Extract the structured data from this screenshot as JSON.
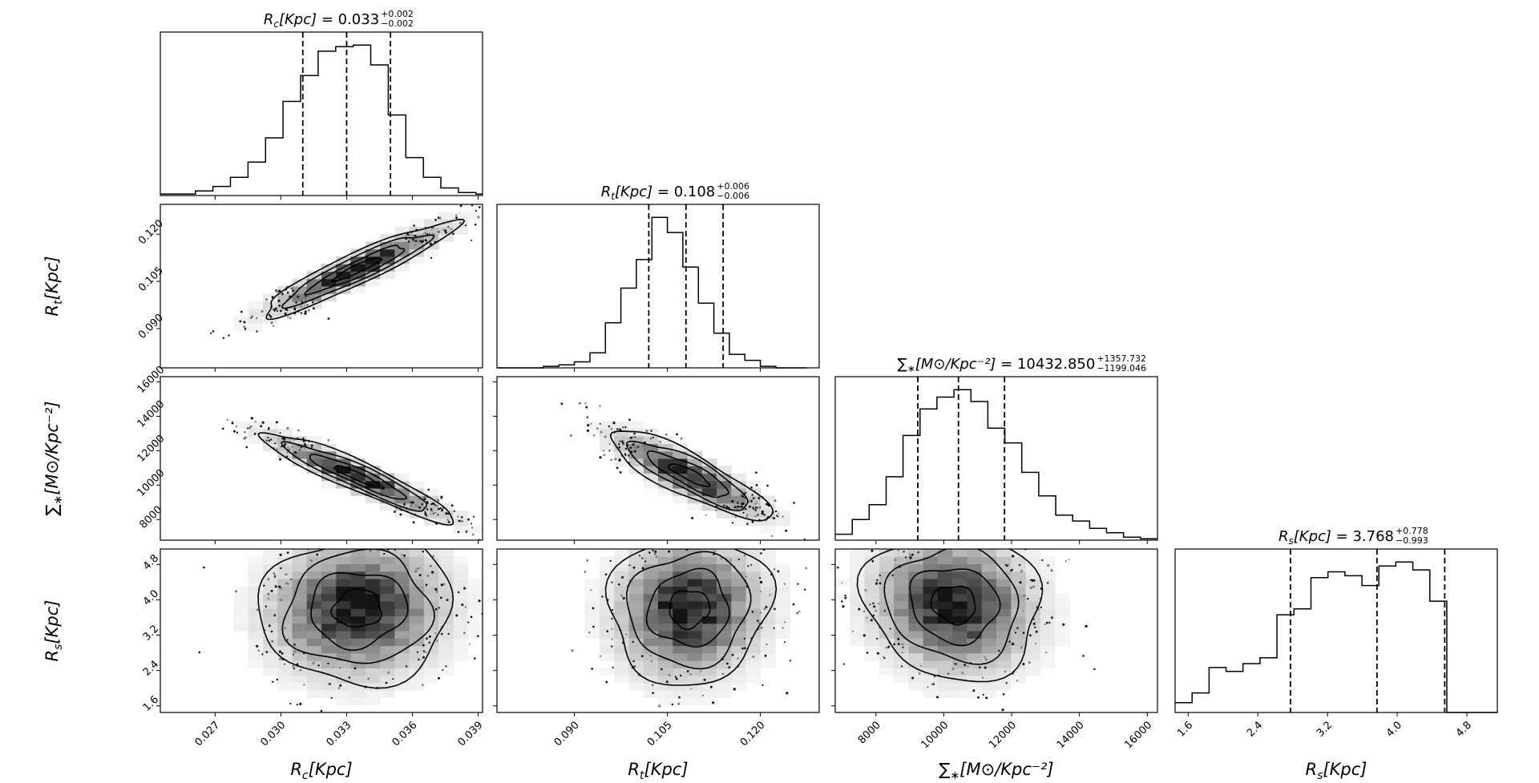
{
  "figure": {
    "type": "corner_plot",
    "background": "#ffffff",
    "line_color": "#000000"
  },
  "parameters": [
    {
      "key": "rc",
      "label_main": "R",
      "label_sub": "c",
      "label_rest": "[Kpc]",
      "title_value": "0.033",
      "err_plus": "+0.002",
      "err_minus": "−0.002",
      "median": 0.033,
      "q16": 0.031,
      "q84": 0.035,
      "range": [
        0.0245,
        0.0392
      ],
      "ticks": [
        0.027,
        0.03,
        0.033,
        0.036,
        0.039
      ],
      "tick_labels": [
        "0.027",
        "0.030",
        "0.033",
        "0.036",
        "0.039"
      ]
    },
    {
      "key": "rt",
      "label_main": "R",
      "label_sub": "t",
      "label_rest": "[Kpc]",
      "title_value": "0.108",
      "err_plus": "+0.006",
      "err_minus": "−0.006",
      "median": 0.108,
      "q16": 0.102,
      "q84": 0.114,
      "range": [
        0.0775,
        0.1295
      ],
      "ticks": [
        0.09,
        0.105,
        0.12
      ],
      "tick_labels": [
        "0.090",
        "0.105",
        "0.120"
      ]
    },
    {
      "key": "sigma",
      "label_main": "∑",
      "label_sub": "∗",
      "label_rest": "[M⊙/Kpc⁻²]",
      "title_value": "10432.850",
      "err_plus": "+1357.732",
      "err_minus": "−1199.046",
      "median": 10432.85,
      "q16": 9233.8,
      "q84": 11790.6,
      "range": [
        6800,
        16300
      ],
      "ticks": [
        8000,
        10000,
        12000,
        14000,
        16000
      ],
      "tick_labels": [
        "8000",
        "10000",
        "12000",
        "14000",
        "16000"
      ]
    },
    {
      "key": "rs",
      "label_main": "R",
      "label_sub": "s",
      "label_rest": "[Kpc]",
      "title_value": "3.768",
      "err_plus": "+0.778",
      "err_minus": "−0.993",
      "median": 3.768,
      "q16": 2.775,
      "q84": 4.546,
      "range": [
        1.45,
        5.15
      ],
      "ticks": [
        1.6,
        2.4,
        3.2,
        4.0,
        4.8
      ],
      "tick_labels": [
        "1.6",
        "2.4",
        "3.2",
        "4.0",
        "4.8"
      ]
    }
  ],
  "chart_data": [
    {
      "type": "histogram",
      "panel": "rc",
      "title": "Rc[Kpc] = 0.033 +0.002 −0.002",
      "bin_edges_start": 0.0245,
      "bin_width": 0.0008,
      "counts": [
        1,
        1,
        3,
        6,
        12,
        22,
        38,
        62,
        79,
        95,
        98,
        99,
        86,
        53,
        25,
        12,
        5,
        2,
        1
      ]
    },
    {
      "type": "histogram",
      "panel": "rt",
      "title": "Rt[Kpc] = 0.108 +0.006 −0.006",
      "bin_edges_start": 0.0775,
      "bin_width": 0.0025,
      "counts": [
        0,
        0,
        0,
        1,
        2,
        4,
        10,
        30,
        53,
        72,
        100,
        90,
        67,
        43,
        23,
        9,
        5,
        1,
        0,
        0
      ]
    },
    {
      "type": "histogram",
      "panel": "sigma",
      "title": "∑∗[M⊙/Kpc⁻²] = 10432.850 +1357.732 −1199.046",
      "bin_edges_start": 6800,
      "bin_width": 500,
      "counts": [
        4,
        14,
        24,
        43,
        71,
        89,
        97,
        102,
        94,
        76,
        66,
        46,
        30,
        17,
        13,
        8,
        5,
        2,
        1
      ]
    },
    {
      "type": "histogram",
      "panel": "rs",
      "title": "Rs[Kpc] = 3.768 +0.778 −0.993",
      "bin_edges_start": 1.45,
      "bin_width": 0.195,
      "counts": [
        5,
        10,
        23,
        21,
        25,
        28,
        50,
        53,
        69,
        72,
        70,
        65,
        75,
        77,
        73,
        57,
        0,
        0,
        0
      ]
    },
    {
      "type": "contour",
      "x": "rc",
      "y": "rt",
      "center": [
        0.0335,
        0.109
      ],
      "sigma": [
        0.0022,
        0.0075
      ],
      "rho": 0.93,
      "levels": [
        0.5,
        1.0,
        1.5,
        2.0
      ]
    },
    {
      "type": "contour",
      "x": "rc",
      "y": "sigma",
      "center": [
        0.0335,
        10500
      ],
      "sigma": [
        0.0022,
        1300
      ],
      "rho": -0.93,
      "levels": [
        0.5,
        1.0,
        1.5,
        2.0
      ]
    },
    {
      "type": "contour",
      "x": "rt",
      "y": "sigma",
      "center": [
        0.1085,
        10600
      ],
      "sigma": [
        0.0065,
        1300
      ],
      "rho": -0.85,
      "levels": [
        0.5,
        1.0,
        1.5,
        2.0
      ]
    },
    {
      "type": "contour",
      "x": "rc",
      "y": "rs",
      "center": [
        0.0335,
        3.8
      ],
      "sigma": [
        0.0022,
        0.85
      ],
      "rho": 0.05,
      "levels": [
        0.5,
        1.0,
        1.5,
        2.0
      ]
    },
    {
      "type": "contour",
      "x": "rt",
      "y": "rs",
      "center": [
        0.1085,
        3.8
      ],
      "sigma": [
        0.0065,
        0.85
      ],
      "rho": 0.05,
      "levels": [
        0.5,
        1.0,
        1.5,
        2.0
      ]
    },
    {
      "type": "contour",
      "x": "sigma",
      "y": "rs",
      "center": [
        10300,
        3.9
      ],
      "sigma": [
        1300,
        0.85
      ],
      "rho": -0.1,
      "levels": [
        0.5,
        1.0,
        1.5,
        2.0
      ]
    }
  ]
}
